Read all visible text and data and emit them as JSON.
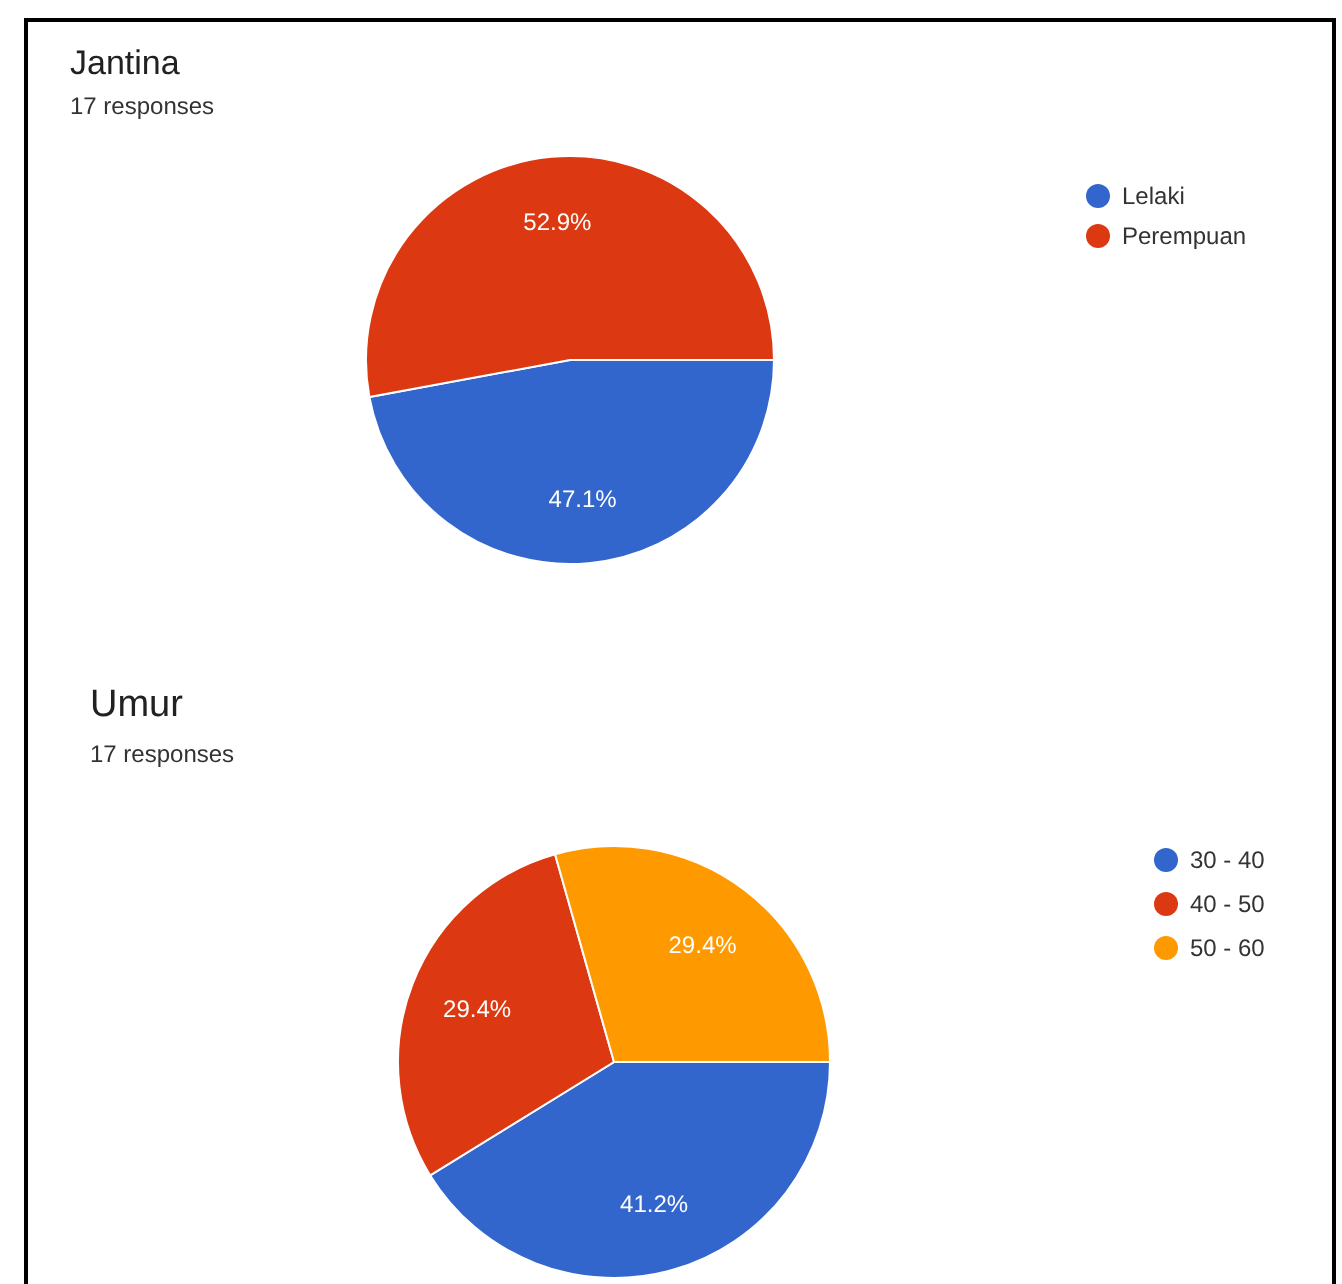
{
  "chart_data": [
    {
      "type": "pie",
      "title": "Jantina",
      "subtitle": "17 responses",
      "categories": [
        "Lelaki",
        "Perempuan"
      ],
      "values": [
        47.1,
        52.9
      ],
      "colors": [
        "#3366cc",
        "#dc3912"
      ],
      "value_labels": [
        "47.1%",
        "52.9%"
      ],
      "legend": "right"
    },
    {
      "type": "pie",
      "title": "Umur",
      "subtitle": "17 responses",
      "categories": [
        "30 - 40",
        "40 - 50",
        "50 - 60"
      ],
      "values": [
        41.2,
        29.4,
        29.4
      ],
      "colors": [
        "#3366cc",
        "#dc3912",
        "#ff9900"
      ],
      "value_labels": [
        "41.2%",
        "29.4%",
        "29.4%"
      ],
      "legend": "right"
    }
  ]
}
